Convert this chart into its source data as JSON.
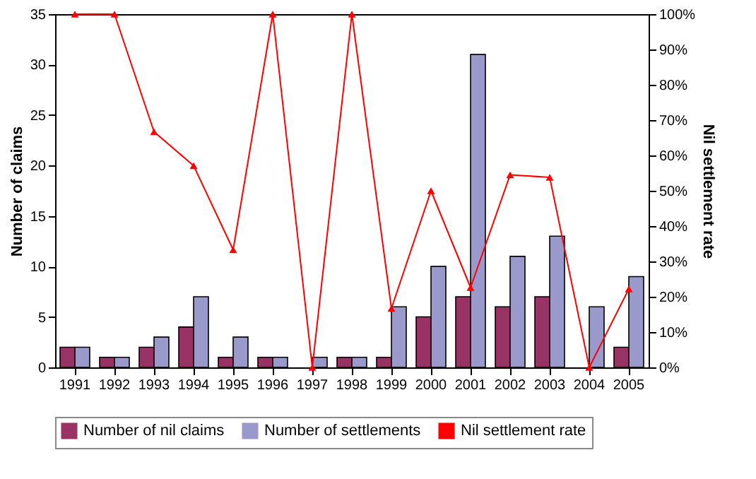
{
  "chart_data": {
    "type": "bar",
    "categories": [
      "1991",
      "1992",
      "1993",
      "1994",
      "1995",
      "1996",
      "1997",
      "1998",
      "1999",
      "2000",
      "2001",
      "2002",
      "2003",
      "2004",
      "2005"
    ],
    "series": [
      {
        "name": "Number of nil claims",
        "color": "#993366",
        "values": [
          2,
          1,
          2,
          4,
          1,
          1,
          0,
          1,
          1,
          5,
          7,
          6,
          7,
          0,
          2
        ]
      },
      {
        "name": "Number of settlements",
        "color": "#9999cc",
        "values": [
          2,
          1,
          3,
          7,
          3,
          1,
          1,
          1,
          6,
          10,
          31,
          11,
          13,
          6,
          9
        ]
      },
      {
        "name": "Nil settlement rate",
        "type": "line",
        "axis": "y2",
        "color": "#ff0000",
        "marker": "triangle",
        "values": [
          100,
          100,
          66.7,
          57.1,
          33.3,
          100,
          0,
          100,
          16.7,
          50,
          22.6,
          54.5,
          53.8,
          0,
          22.2
        ]
      }
    ],
    "ylabel": "Number of claims",
    "y2label": "Nil settlement rate",
    "ylim": [
      0,
      35
    ],
    "yticks": [
      0,
      5,
      10,
      15,
      20,
      25,
      30,
      35
    ],
    "y2lim": [
      0,
      100
    ],
    "y2ticks": [
      {
        "value": 0,
        "label": "0%"
      },
      {
        "value": 10,
        "label": "10%"
      },
      {
        "value": 20,
        "label": "20%"
      },
      {
        "value": 30,
        "label": "30%"
      },
      {
        "value": 40,
        "label": "40%"
      },
      {
        "value": 50,
        "label": "50%"
      },
      {
        "value": 60,
        "label": "60%"
      },
      {
        "value": 70,
        "label": "70%"
      },
      {
        "value": 80,
        "label": "80%"
      },
      {
        "value": 90,
        "label": "90%"
      },
      {
        "value": 100,
        "label": "100%"
      }
    ],
    "grid": false,
    "legend": "bottom"
  }
}
